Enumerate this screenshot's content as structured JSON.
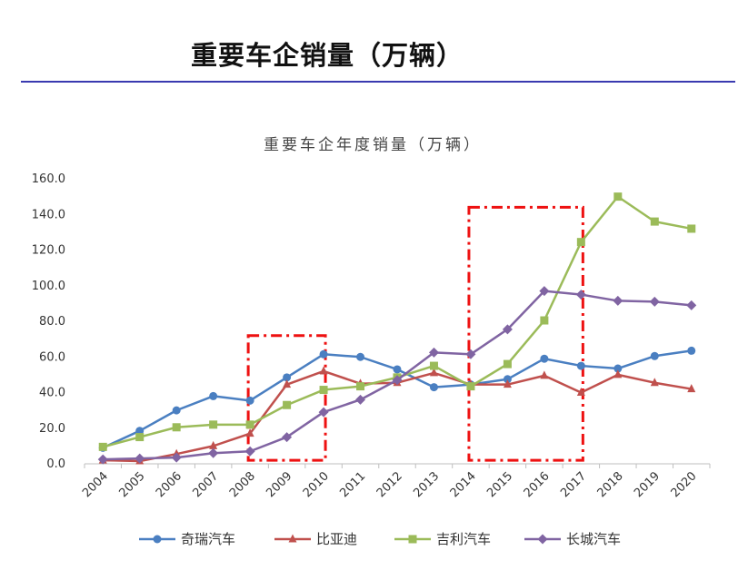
{
  "page": {
    "title": "重要车企销量（万辆）"
  },
  "chart_data": {
    "type": "line",
    "title": "重要车企年度销量（万辆）",
    "xlabel": "",
    "ylabel": "",
    "categories": [
      "2004",
      "2005",
      "2006",
      "2007",
      "2008",
      "2009",
      "2010",
      "2011",
      "2012",
      "2013",
      "2014",
      "2015",
      "2016",
      "2017",
      "2018",
      "2019",
      "2020"
    ],
    "ylim": [
      0,
      160
    ],
    "yticks": [
      "0.0",
      "20.0",
      "40.0",
      "60.0",
      "80.0",
      "100.0",
      "120.0",
      "140.0",
      "160.0"
    ],
    "grid": false,
    "legend_position": "bottom",
    "series": [
      {
        "name": "奇瑞汽车",
        "color": "#4a7fc1",
        "marker": "circle",
        "values": [
          9,
          18.5,
          30,
          38,
          35.5,
          48.5,
          61.5,
          60,
          53,
          43,
          44.5,
          47.5,
          59,
          55,
          53.5,
          60.5,
          63.5
        ]
      },
      {
        "name": "比亚迪",
        "color": "#c0504d",
        "marker": "triangle",
        "values": [
          2,
          1.5,
          5.5,
          10,
          17,
          44.5,
          52,
          45,
          45.5,
          51,
          44.5,
          44.5,
          49.5,
          40,
          50,
          45.5,
          42
        ]
      },
      {
        "name": "吉利汽车",
        "color": "#9bbb59",
        "marker": "square",
        "values": [
          9.5,
          15,
          20.5,
          22,
          22,
          33,
          41.5,
          43.5,
          48.5,
          55,
          43.5,
          56,
          80.5,
          124.5,
          150,
          136,
          132
        ]
      },
      {
        "name": "长城汽车",
        "color": "#8064a2",
        "marker": "diamond",
        "values": [
          2.5,
          3,
          3.5,
          6,
          7,
          15,
          29,
          36,
          47,
          62.5,
          61.5,
          75.5,
          97,
          95,
          91.5,
          91,
          89
        ]
      }
    ],
    "annotations": [
      {
        "type": "dashed-box",
        "color": "#ee1111",
        "x_from": "2008",
        "x_to": "2010",
        "y_from": 2,
        "y_to": 72
      },
      {
        "type": "dashed-box",
        "color": "#ee1111",
        "x_from": "2014",
        "x_to": "2017",
        "y_from": 2,
        "y_to": 144
      }
    ]
  }
}
